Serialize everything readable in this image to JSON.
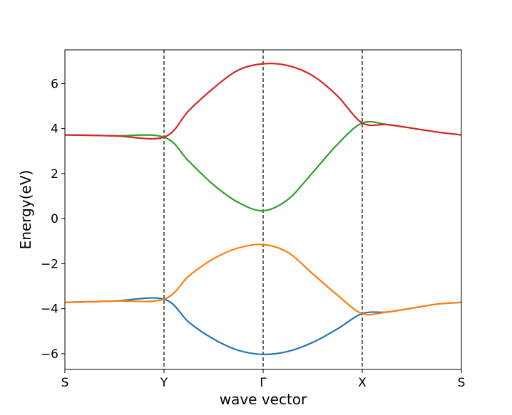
{
  "chart_data": {
    "type": "line",
    "title": "",
    "xlabel": "wave vector",
    "ylabel": "Energy(eV)",
    "x_ticks": [
      {
        "label": "S",
        "x": 0
      },
      {
        "label": "Y",
        "x": 1
      },
      {
        "label": "Γ",
        "x": 2
      },
      {
        "label": "X",
        "x": 3
      },
      {
        "label": "S",
        "x": 4
      }
    ],
    "xlim": [
      0,
      4
    ],
    "ylim": [
      -6.7,
      7.5
    ],
    "y_ticks": [
      -6,
      -4,
      -2,
      0,
      2,
      4,
      6
    ],
    "high_symmetry_lines": [
      1,
      2,
      3
    ],
    "grid": false,
    "legend": "none",
    "series": [
      {
        "color": "#1f77b4",
        "points": [
          [
            0.0,
            -3.72
          ],
          [
            0.5,
            -3.66
          ],
          [
            1.0,
            -3.58
          ],
          [
            1.25,
            -4.6
          ],
          [
            1.5,
            -5.35
          ],
          [
            1.75,
            -5.85
          ],
          [
            2.0,
            -6.03
          ],
          [
            2.25,
            -5.9
          ],
          [
            2.5,
            -5.5
          ],
          [
            2.75,
            -4.9
          ],
          [
            3.0,
            -4.22
          ],
          [
            3.25,
            -4.15
          ],
          [
            3.5,
            -3.98
          ],
          [
            3.75,
            -3.8
          ],
          [
            4.0,
            -3.72
          ]
        ]
      },
      {
        "color": "#ff7f0e",
        "points": [
          [
            0.0,
            -3.72
          ],
          [
            0.5,
            -3.66
          ],
          [
            1.0,
            -3.58
          ],
          [
            1.25,
            -2.55
          ],
          [
            1.5,
            -1.78
          ],
          [
            1.75,
            -1.3
          ],
          [
            2.0,
            -1.15
          ],
          [
            2.25,
            -1.5
          ],
          [
            2.5,
            -2.45
          ],
          [
            2.75,
            -3.4
          ],
          [
            3.0,
            -4.22
          ],
          [
            3.25,
            -4.15
          ],
          [
            3.5,
            -3.98
          ],
          [
            3.75,
            -3.8
          ],
          [
            4.0,
            -3.72
          ]
        ]
      },
      {
        "color": "#2ca02c",
        "points": [
          [
            0.0,
            3.72
          ],
          [
            0.5,
            3.68
          ],
          [
            1.0,
            3.62
          ],
          [
            1.25,
            2.55
          ],
          [
            1.5,
            1.5
          ],
          [
            1.75,
            0.72
          ],
          [
            2.0,
            0.35
          ],
          [
            2.25,
            0.85
          ],
          [
            2.5,
            2.05
          ],
          [
            2.75,
            3.3
          ],
          [
            3.0,
            4.25
          ],
          [
            3.25,
            4.18
          ],
          [
            3.5,
            4.02
          ],
          [
            3.75,
            3.85
          ],
          [
            4.0,
            3.72
          ]
        ]
      },
      {
        "color": "#d62728",
        "points": [
          [
            0.0,
            3.72
          ],
          [
            0.5,
            3.68
          ],
          [
            1.0,
            3.62
          ],
          [
            1.25,
            4.8
          ],
          [
            1.5,
            5.8
          ],
          [
            1.75,
            6.6
          ],
          [
            2.0,
            6.88
          ],
          [
            2.25,
            6.8
          ],
          [
            2.5,
            6.35
          ],
          [
            2.75,
            5.45
          ],
          [
            3.0,
            4.25
          ],
          [
            3.25,
            4.18
          ],
          [
            3.5,
            4.02
          ],
          [
            3.75,
            3.85
          ],
          [
            4.0,
            3.72
          ]
        ]
      }
    ]
  }
}
